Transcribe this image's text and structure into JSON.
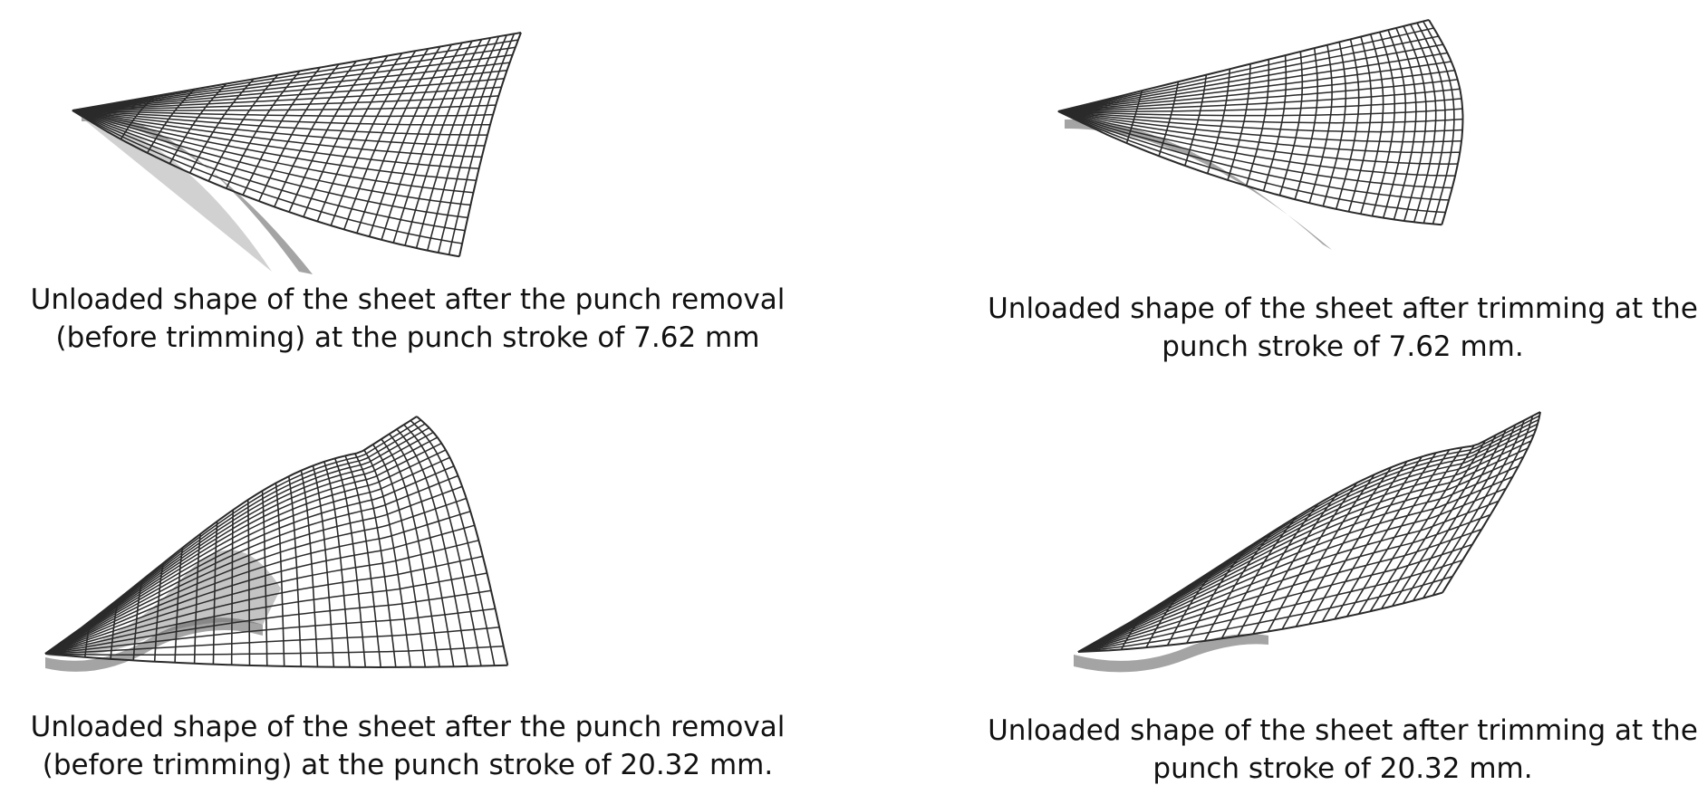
{
  "figure": {
    "panels": [
      {
        "id": "before-trimming-7-62",
        "caption_line1": "Unloaded shape of the sheet after the punch removal",
        "caption_line2": "(before trimming) at the punch stroke of 7.62 mm"
      },
      {
        "id": "after-trimming-7-62",
        "caption_line1": "Unloaded shape of the sheet after trimming at the",
        "caption_line2": "punch stroke of 7.62 mm."
      },
      {
        "id": "before-trimming-20-32",
        "caption_line1": "Unloaded shape of the sheet after the punch removal",
        "caption_line2": "(before trimming) at the punch stroke of 20.32 mm."
      },
      {
        "id": "after-trimming-20-32",
        "caption_line1": "Unloaded shape of the sheet after trimming at the",
        "caption_line2": "punch stroke of 20.32 mm."
      }
    ],
    "colors": {
      "mesh_line": "#2a2a2a",
      "shadow": "#9a9a9a",
      "text": "#111111"
    }
  }
}
